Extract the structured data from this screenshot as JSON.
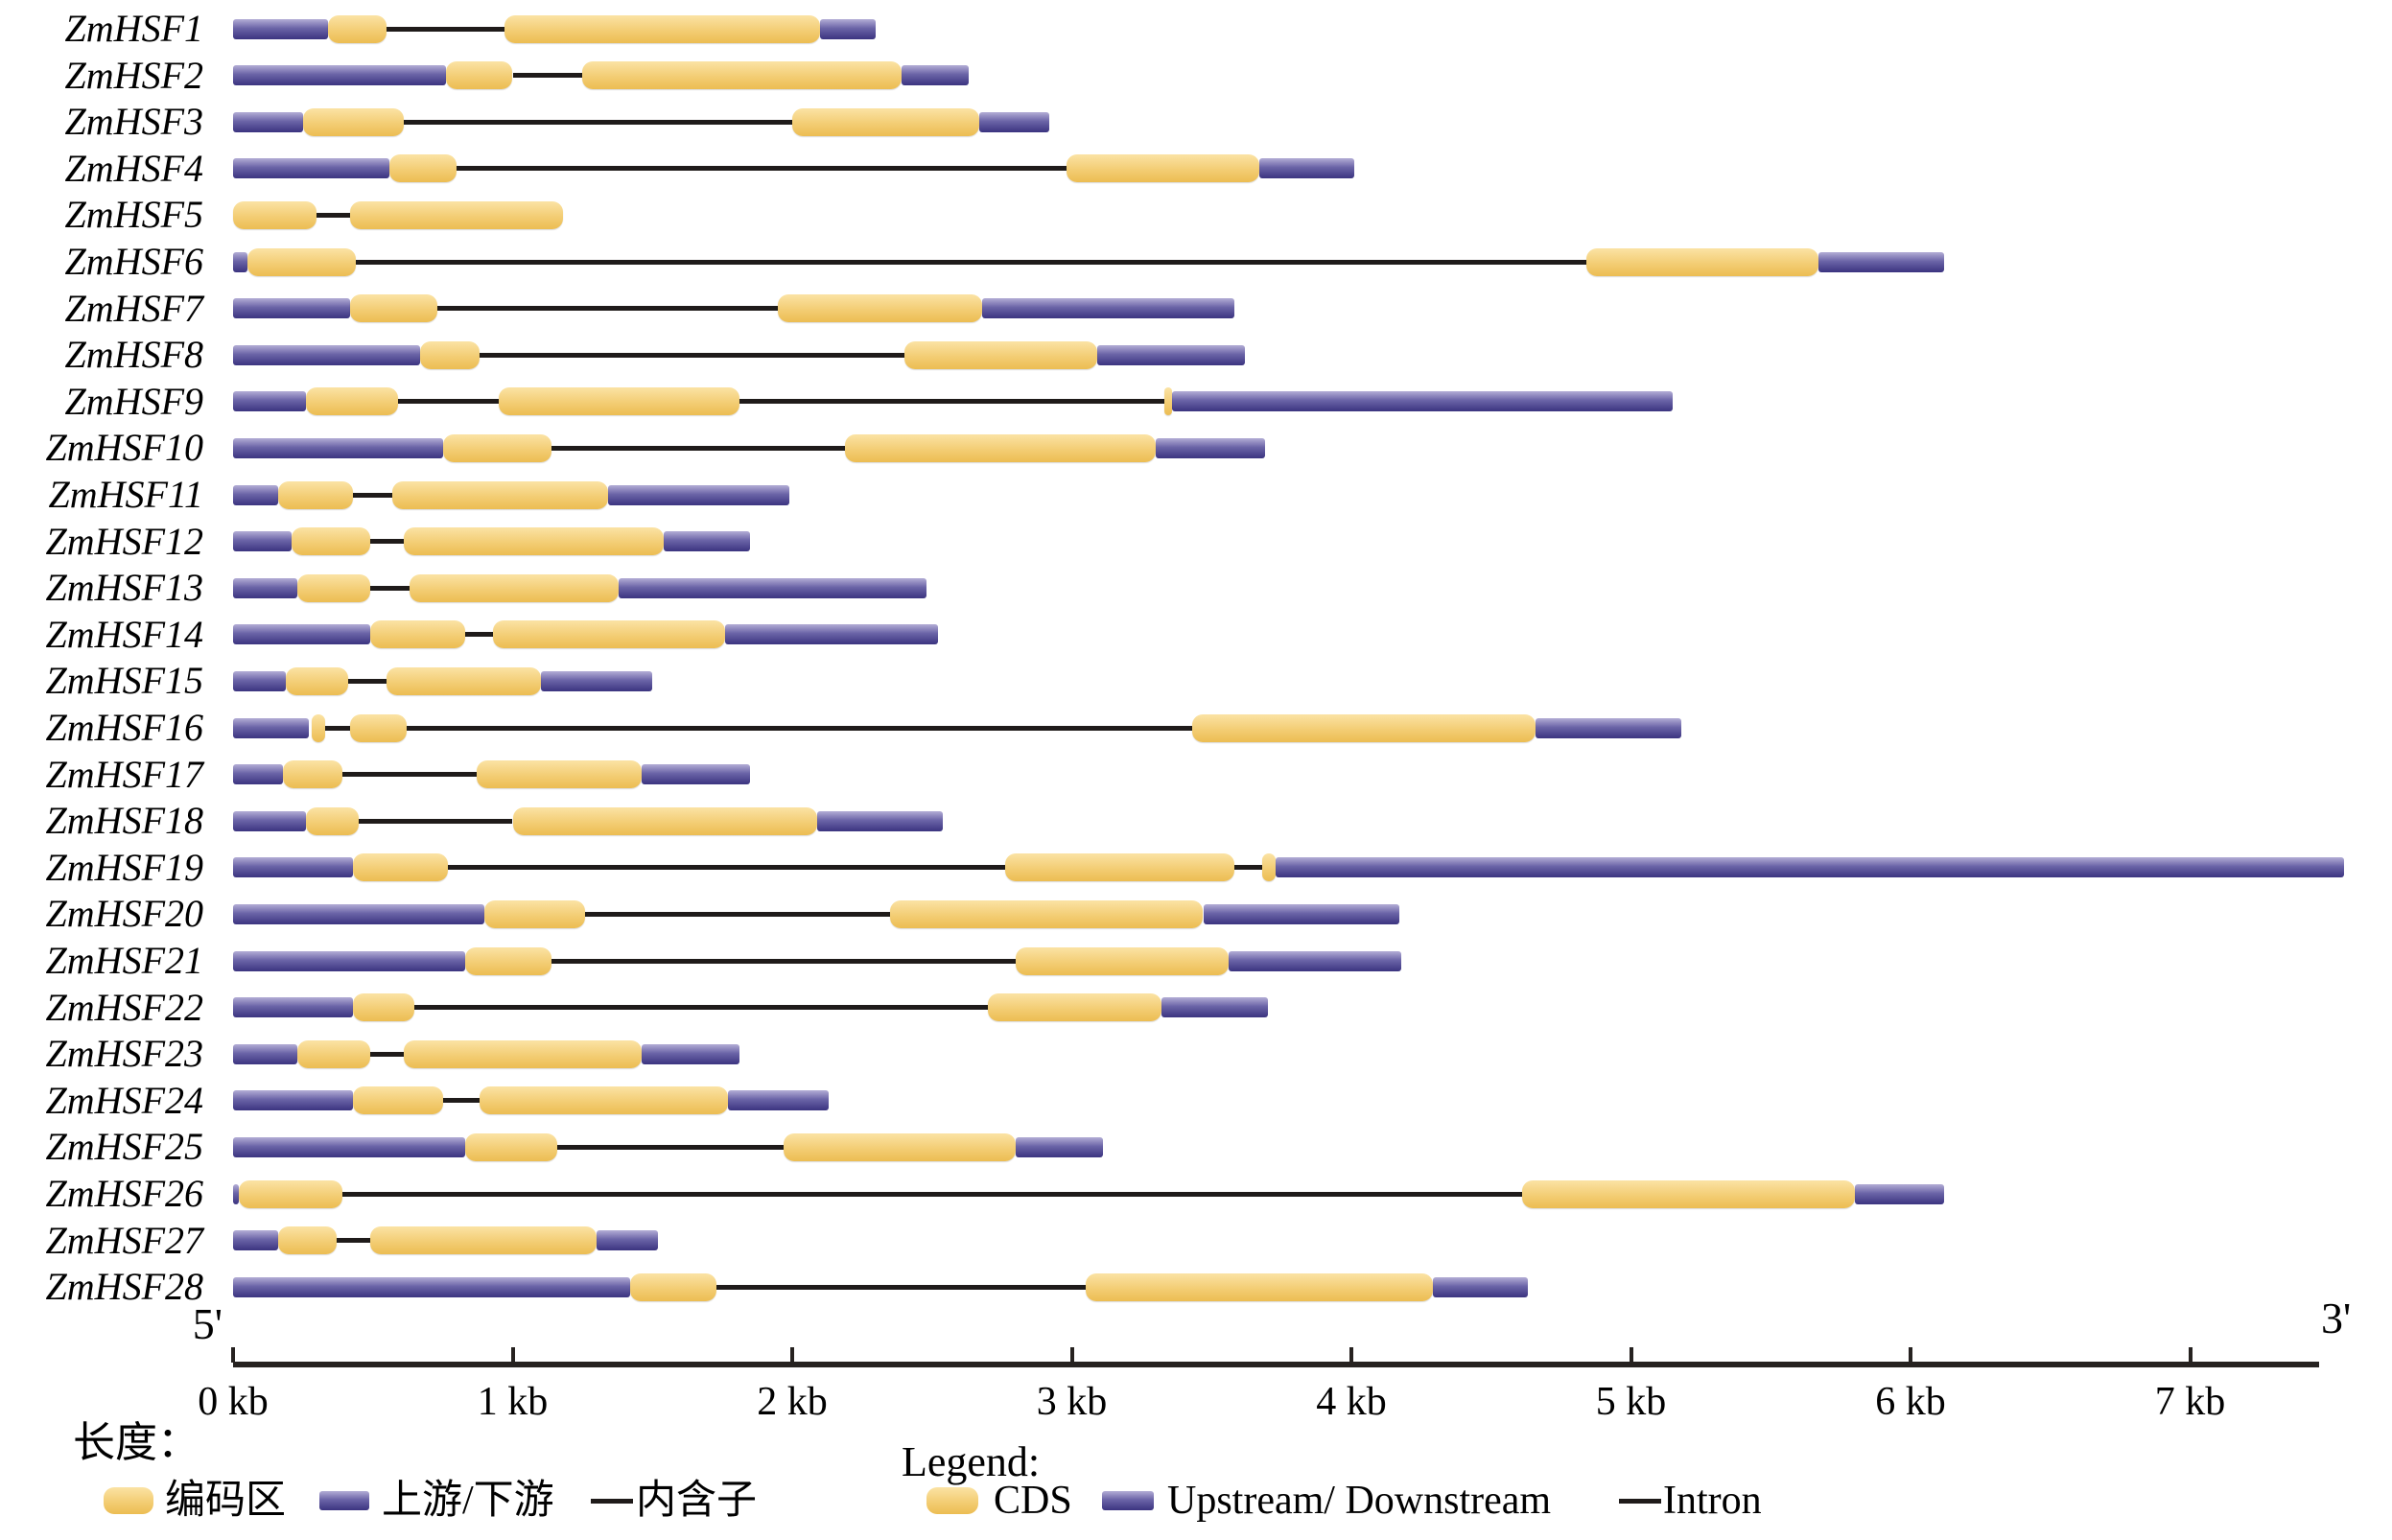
{
  "figure": {
    "five_prime": "5'",
    "three_prime": "3'",
    "axis_ticks": [
      "0 kb",
      "1 kb",
      "2 kb",
      "3 kb",
      "4 kb",
      "5 kb",
      "6 kb",
      "7 kb"
    ]
  },
  "legend_cn": {
    "title": "长度：",
    "cds_label": "编码区",
    "updown_label": "上游/下游",
    "intron_label": "内含子"
  },
  "legend_en": {
    "title": "Legend:",
    "cds_label": "CDS",
    "updown_label": "Upstream/ Downstream",
    "intron_label": "Intron"
  },
  "colors": {
    "cds_top": "#fbe3a4",
    "cds_bottom": "#ecbd52",
    "updown_top": "#b3add6",
    "updown_mid": "#6b64a7",
    "updown_bottom": "#3b3480",
    "intron": "#1f1b1a",
    "axis": "#262220"
  },
  "chart_data": {
    "type": "gene-structure",
    "unit": "kb",
    "axis_range": [
      0,
      7
    ],
    "segment_types": {
      "cds": "CDS / 编码区",
      "updown": "Upstream/Downstream / 上游/下游",
      "intron": "Intron / 内含子"
    },
    "genes": [
      {
        "name": "ZmHSF1",
        "segments": [
          [
            "updown",
            0,
            0.34
          ],
          [
            "cds",
            0.34,
            0.55
          ],
          [
            "intron",
            0.55,
            0.97
          ],
          [
            "cds",
            0.97,
            2.1
          ],
          [
            "updown",
            2.1,
            2.3
          ]
        ]
      },
      {
        "name": "ZmHSF2",
        "segments": [
          [
            "updown",
            0,
            0.76
          ],
          [
            "cds",
            0.76,
            1.0
          ],
          [
            "intron",
            1.0,
            1.25
          ],
          [
            "cds",
            1.25,
            2.39
          ],
          [
            "updown",
            2.39,
            2.63
          ]
        ]
      },
      {
        "name": "ZmHSF3",
        "segments": [
          [
            "updown",
            0,
            0.25
          ],
          [
            "cds",
            0.25,
            0.61
          ],
          [
            "intron",
            0.61,
            2.0
          ],
          [
            "cds",
            2.0,
            2.67
          ],
          [
            "updown",
            2.67,
            2.92
          ]
        ]
      },
      {
        "name": "ZmHSF4",
        "segments": [
          [
            "updown",
            0,
            0.56
          ],
          [
            "cds",
            0.56,
            0.8
          ],
          [
            "intron",
            0.8,
            2.98
          ],
          [
            "cds",
            2.98,
            3.67
          ],
          [
            "updown",
            3.67,
            4.01
          ]
        ]
      },
      {
        "name": "ZmHSF5",
        "segments": [
          [
            "cds",
            0,
            0.3
          ],
          [
            "intron",
            0.3,
            0.42
          ],
          [
            "cds",
            0.42,
            1.18
          ]
        ]
      },
      {
        "name": "ZmHSF6",
        "segments": [
          [
            "updown",
            0,
            0.05
          ],
          [
            "cds",
            0.05,
            0.44
          ],
          [
            "intron",
            0.44,
            4.84
          ],
          [
            "cds",
            4.84,
            5.67
          ],
          [
            "updown",
            5.67,
            6.12
          ]
        ]
      },
      {
        "name": "ZmHSF7",
        "segments": [
          [
            "updown",
            0,
            0.42
          ],
          [
            "cds",
            0.42,
            0.73
          ],
          [
            "intron",
            0.73,
            1.95
          ],
          [
            "cds",
            1.95,
            2.68
          ],
          [
            "updown",
            2.68,
            3.58
          ]
        ]
      },
      {
        "name": "ZmHSF8",
        "segments": [
          [
            "updown",
            0,
            0.67
          ],
          [
            "cds",
            0.67,
            0.88
          ],
          [
            "intron",
            0.88,
            2.4
          ],
          [
            "cds",
            2.4,
            3.09
          ],
          [
            "updown",
            3.09,
            3.62
          ]
        ]
      },
      {
        "name": "ZmHSF9",
        "segments": [
          [
            "updown",
            0,
            0.26
          ],
          [
            "cds",
            0.26,
            0.59
          ],
          [
            "intron",
            0.59,
            0.95
          ],
          [
            "cds",
            0.95,
            1.81
          ],
          [
            "intron",
            1.81,
            3.33
          ],
          [
            "cds",
            3.33,
            3.36
          ],
          [
            "updown",
            3.36,
            5.15
          ]
        ]
      },
      {
        "name": "ZmHSF10",
        "segments": [
          [
            "updown",
            0,
            0.75
          ],
          [
            "cds",
            0.75,
            1.14
          ],
          [
            "intron",
            1.14,
            2.19
          ],
          [
            "cds",
            2.19,
            3.3
          ],
          [
            "updown",
            3.3,
            3.69
          ]
        ]
      },
      {
        "name": "ZmHSF11",
        "segments": [
          [
            "updown",
            0,
            0.16
          ],
          [
            "cds",
            0.16,
            0.43
          ],
          [
            "intron",
            0.43,
            0.57
          ],
          [
            "cds",
            0.57,
            1.34
          ],
          [
            "updown",
            1.34,
            1.99
          ]
        ]
      },
      {
        "name": "ZmHSF12",
        "segments": [
          [
            "updown",
            0,
            0.21
          ],
          [
            "cds",
            0.21,
            0.49
          ],
          [
            "intron",
            0.49,
            0.61
          ],
          [
            "cds",
            0.61,
            1.54
          ],
          [
            "updown",
            1.54,
            1.85
          ]
        ]
      },
      {
        "name": "ZmHSF13",
        "segments": [
          [
            "updown",
            0,
            0.23
          ],
          [
            "cds",
            0.23,
            0.49
          ],
          [
            "intron",
            0.49,
            0.63
          ],
          [
            "cds",
            0.63,
            1.38
          ],
          [
            "updown",
            1.38,
            2.48
          ]
        ]
      },
      {
        "name": "ZmHSF14",
        "segments": [
          [
            "updown",
            0,
            0.49
          ],
          [
            "cds",
            0.49,
            0.83
          ],
          [
            "intron",
            0.83,
            0.93
          ],
          [
            "cds",
            0.93,
            1.76
          ],
          [
            "updown",
            1.76,
            2.52
          ]
        ]
      },
      {
        "name": "ZmHSF15",
        "segments": [
          [
            "updown",
            0,
            0.19
          ],
          [
            "cds",
            0.19,
            0.41
          ],
          [
            "intron",
            0.41,
            0.55
          ],
          [
            "cds",
            0.55,
            1.1
          ],
          [
            "updown",
            1.1,
            1.5
          ]
        ]
      },
      {
        "name": "ZmHSF16",
        "segments": [
          [
            "updown",
            0,
            0.27
          ],
          [
            "cds",
            0.28,
            0.33
          ],
          [
            "intron",
            0.33,
            0.42
          ],
          [
            "cds",
            0.42,
            0.62
          ],
          [
            "intron",
            0.62,
            3.43
          ],
          [
            "cds",
            3.43,
            4.66
          ],
          [
            "updown",
            4.66,
            5.18
          ]
        ]
      },
      {
        "name": "ZmHSF17",
        "segments": [
          [
            "updown",
            0,
            0.18
          ],
          [
            "cds",
            0.18,
            0.39
          ],
          [
            "intron",
            0.39,
            0.87
          ],
          [
            "cds",
            0.87,
            1.46
          ],
          [
            "updown",
            1.46,
            1.85
          ]
        ]
      },
      {
        "name": "ZmHSF18",
        "segments": [
          [
            "updown",
            0,
            0.26
          ],
          [
            "cds",
            0.26,
            0.45
          ],
          [
            "intron",
            0.45,
            1.0
          ],
          [
            "cds",
            1.0,
            2.09
          ],
          [
            "updown",
            2.09,
            2.54
          ]
        ]
      },
      {
        "name": "ZmHSF19",
        "segments": [
          [
            "updown",
            0,
            0.43
          ],
          [
            "cds",
            0.43,
            0.77
          ],
          [
            "intron",
            0.77,
            2.76
          ],
          [
            "cds",
            2.76,
            3.58
          ],
          [
            "intron",
            3.58,
            3.68
          ],
          [
            "cds",
            3.68,
            3.73
          ],
          [
            "updown",
            3.73,
            7.55
          ]
        ]
      },
      {
        "name": "ZmHSF20",
        "segments": [
          [
            "updown",
            0,
            0.9
          ],
          [
            "cds",
            0.9,
            1.26
          ],
          [
            "intron",
            1.26,
            2.35
          ],
          [
            "cds",
            2.35,
            3.47
          ],
          [
            "updown",
            3.47,
            4.17
          ]
        ]
      },
      {
        "name": "ZmHSF21",
        "segments": [
          [
            "updown",
            0,
            0.83
          ],
          [
            "cds",
            0.83,
            1.14
          ],
          [
            "intron",
            1.14,
            2.8
          ],
          [
            "cds",
            2.8,
            3.56
          ],
          [
            "updown",
            3.56,
            4.18
          ]
        ]
      },
      {
        "name": "ZmHSF22",
        "segments": [
          [
            "updown",
            0,
            0.43
          ],
          [
            "cds",
            0.43,
            0.65
          ],
          [
            "intron",
            0.65,
            2.7
          ],
          [
            "cds",
            2.7,
            3.32
          ],
          [
            "updown",
            3.32,
            3.7
          ]
        ]
      },
      {
        "name": "ZmHSF23",
        "segments": [
          [
            "updown",
            0,
            0.23
          ],
          [
            "cds",
            0.23,
            0.49
          ],
          [
            "intron",
            0.49,
            0.61
          ],
          [
            "cds",
            0.61,
            1.46
          ],
          [
            "updown",
            1.46,
            1.81
          ]
        ]
      },
      {
        "name": "ZmHSF24",
        "segments": [
          [
            "updown",
            0,
            0.43
          ],
          [
            "cds",
            0.43,
            0.75
          ],
          [
            "intron",
            0.75,
            0.88
          ],
          [
            "cds",
            0.88,
            1.77
          ],
          [
            "updown",
            1.77,
            2.13
          ]
        ]
      },
      {
        "name": "ZmHSF25",
        "segments": [
          [
            "updown",
            0,
            0.83
          ],
          [
            "cds",
            0.83,
            1.16
          ],
          [
            "intron",
            1.16,
            1.97
          ],
          [
            "cds",
            1.97,
            2.8
          ],
          [
            "updown",
            2.8,
            3.11
          ]
        ]
      },
      {
        "name": "ZmHSF26",
        "segments": [
          [
            "updown",
            0,
            0.02
          ],
          [
            "cds",
            0.02,
            0.39
          ],
          [
            "intron",
            0.39,
            4.61
          ],
          [
            "cds",
            4.61,
            5.8
          ],
          [
            "updown",
            5.8,
            6.12
          ]
        ]
      },
      {
        "name": "ZmHSF27",
        "segments": [
          [
            "updown",
            0,
            0.16
          ],
          [
            "cds",
            0.16,
            0.37
          ],
          [
            "intron",
            0.37,
            0.49
          ],
          [
            "cds",
            0.49,
            1.3
          ],
          [
            "updown",
            1.3,
            1.52
          ]
        ]
      },
      {
        "name": "ZmHSF28",
        "segments": [
          [
            "updown",
            0,
            1.42
          ],
          [
            "cds",
            1.42,
            1.73
          ],
          [
            "intron",
            1.73,
            3.05
          ],
          [
            "cds",
            3.05,
            4.29
          ],
          [
            "updown",
            4.29,
            4.63
          ]
        ]
      }
    ]
  }
}
